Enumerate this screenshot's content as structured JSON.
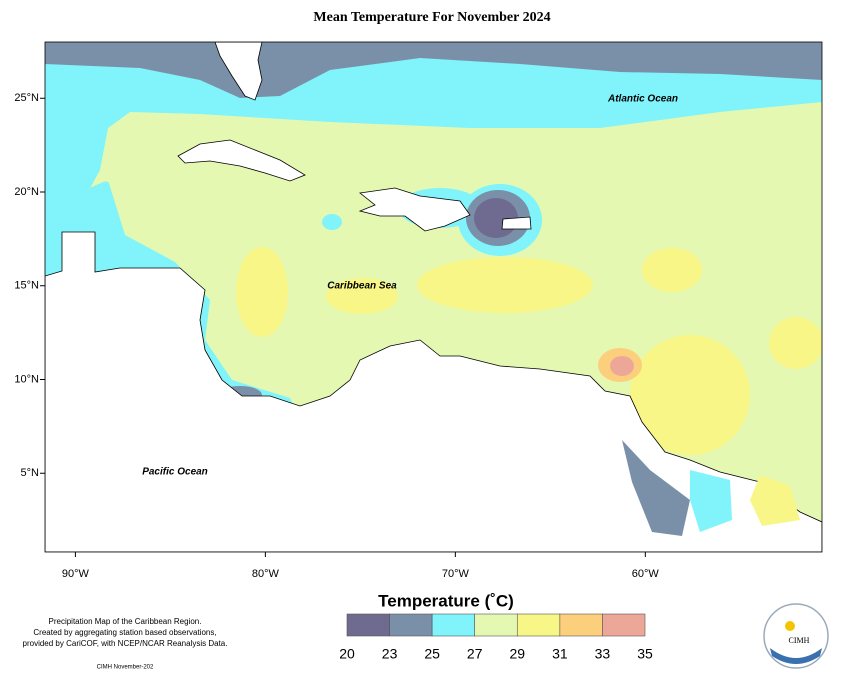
{
  "map": {
    "title": "Mean Temperature For November 2024",
    "xlim": [
      -91.6,
      -50.7
    ],
    "ylim": [
      0.8,
      28
    ],
    "xticks": [
      {
        "value": -90,
        "label": "90°W"
      },
      {
        "value": -80,
        "label": "80°W"
      },
      {
        "value": -70,
        "label": "70°W"
      },
      {
        "value": -60,
        "label": "60°W"
      }
    ],
    "yticks": [
      {
        "value": 25,
        "label": "25°N"
      },
      {
        "value": 20,
        "label": "20°N"
      },
      {
        "value": 15,
        "label": "15°N"
      },
      {
        "value": 10,
        "label": "10°N"
      },
      {
        "value": 5,
        "label": "5°N"
      }
    ],
    "place_labels": [
      "Atlantic Ocean",
      "Caribbean Sea",
      "Pacific Ocean"
    ],
    "legend": {
      "title": "Temperature (˚C)",
      "bins": [
        20,
        23,
        25,
        27,
        29,
        31,
        33,
        35
      ],
      "colors": [
        "#6f6a8f",
        "#7a90a9",
        "#80f3fb",
        "#e4f8b2",
        "#f8f686",
        "#fccf7d",
        "#eda799"
      ]
    },
    "notes": [
      "Precipitation Map of the Caribbean Region.",
      "Created by aggregating station based observations,",
      "provided by CariCOF, with NCEP/NCAR Reanalysis Data."
    ],
    "credit": "CIMH November-202",
    "logo_text": "CIMH"
  }
}
